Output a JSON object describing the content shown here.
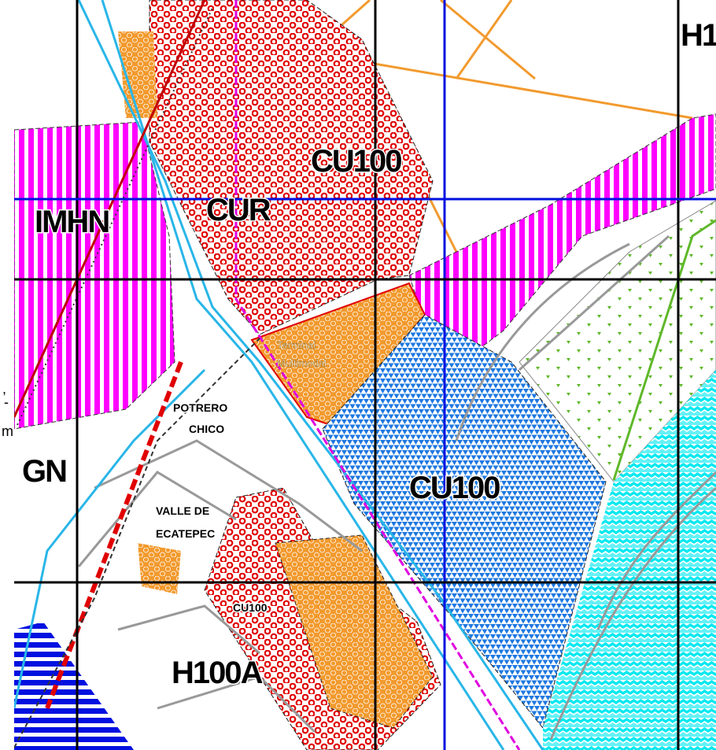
{
  "map": {
    "labels": [
      "H1",
      "CU100",
      "CUR",
      "IMHN",
      "Terminal",
      "Multimodal",
      "POTRERO",
      "CHICO",
      "CU100",
      "GN",
      "VALLE DE",
      "ECATEPEC",
      "CU100",
      "H100A"
    ],
    "edge_fragments": [
      ",",
      "-",
      "m"
    ]
  }
}
